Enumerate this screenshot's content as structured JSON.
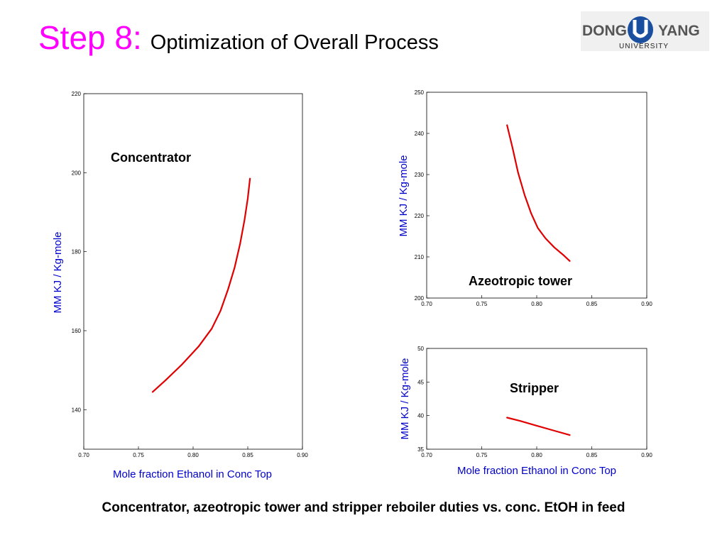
{
  "header": {
    "step": "Step 8:",
    "subtitle": "Optimization of Overall Process"
  },
  "logo": {
    "left": "DONG",
    "right": "YANG",
    "bottom": "UNIVERSITY"
  },
  "caption": "Concentrator, azeotropic tower and stripper reboiler duties vs. conc. EtOH in feed",
  "colors": {
    "title_accent": "#ff00ff",
    "axis_label": "#0000cc",
    "series": "#e00000"
  },
  "chart_data": [
    {
      "type": "line",
      "annotation": "Concentrator",
      "xlabel": "Mole fraction Ethanol in Conc Top",
      "ylabel": "MM KJ / Kg-mole",
      "xlim": [
        0.7,
        0.9
      ],
      "ylim": [
        130,
        220
      ],
      "xticks": [
        "0.70",
        "0.75",
        "0.80",
        "0.85",
        "0.90"
      ],
      "yticks": [
        "140",
        "160",
        "180",
        "200",
        "220"
      ],
      "series": [
        {
          "x": [
            0.763,
            0.775,
            0.79,
            0.805,
            0.817,
            0.825,
            0.832,
            0.838,
            0.843,
            0.847,
            0.85,
            0.852
          ],
          "y": [
            144.5,
            147.5,
            151.5,
            156.0,
            160.5,
            165.0,
            170.5,
            176.0,
            182.0,
            188.0,
            193.5,
            198.5
          ]
        }
      ]
    },
    {
      "type": "line",
      "annotation": "Azeotropic tower",
      "xlabel": "",
      "ylabel": "MM KJ / Kg-mole",
      "xlim": [
        0.7,
        0.9
      ],
      "ylim": [
        200,
        250
      ],
      "xticks": [
        "0.70",
        "0.75",
        "0.80",
        "0.85",
        "0.90"
      ],
      "yticks": [
        "200",
        "210",
        "220",
        "230",
        "240",
        "250"
      ],
      "series": [
        {
          "x": [
            0.773,
            0.778,
            0.783,
            0.789,
            0.795,
            0.801,
            0.808,
            0.816,
            0.824,
            0.83
          ],
          "y": [
            242.0,
            236.5,
            230.5,
            225.0,
            220.5,
            217.0,
            214.5,
            212.3,
            210.5,
            209.0
          ]
        }
      ]
    },
    {
      "type": "line",
      "annotation": "Stripper",
      "xlabel": "Mole fraction Ethanol in Conc Top",
      "ylabel": "MM KJ / Kg-mole",
      "xlim": [
        0.7,
        0.9
      ],
      "ylim": [
        35,
        50
      ],
      "xticks": [
        "0.70",
        "0.75",
        "0.80",
        "0.85",
        "0.90"
      ],
      "yticks": [
        "35",
        "40",
        "45",
        "50"
      ],
      "series": [
        {
          "x": [
            0.773,
            0.785,
            0.8,
            0.815,
            0.83
          ],
          "y": [
            39.7,
            39.2,
            38.5,
            37.8,
            37.1
          ]
        }
      ]
    }
  ]
}
